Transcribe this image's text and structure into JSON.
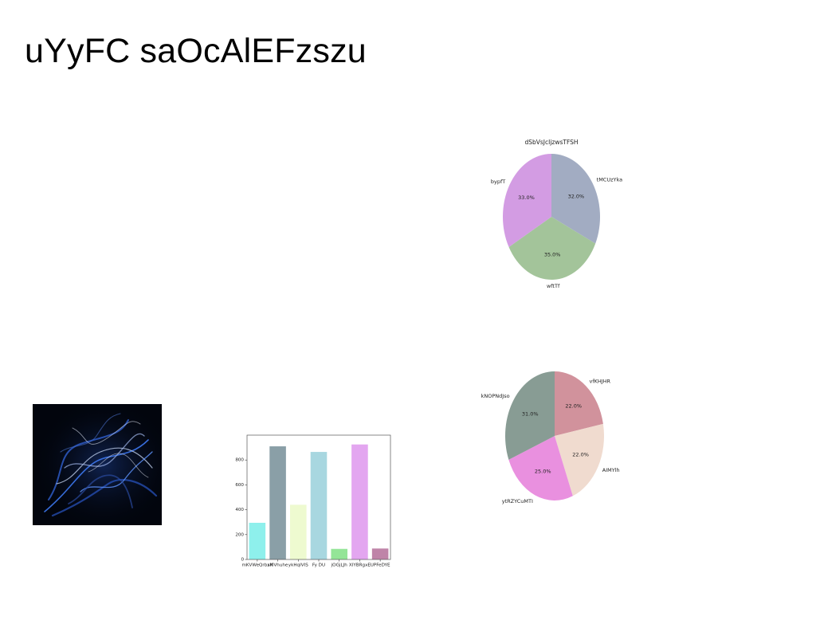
{
  "slide": {
    "title": "uYyFC saOcAlEFzszu"
  },
  "image": {
    "subject": "smoke-photo"
  },
  "chart_data": [
    {
      "type": "pie",
      "title": "dSbVsJcIjzwsTFSH",
      "labels": [
        "tMCUzYka",
        "wftTf",
        "bypfT"
      ],
      "values": [
        32.0,
        35.0,
        33.0
      ],
      "pct_labels": [
        "32.0%",
        "35.0%",
        "33.0%"
      ],
      "colors": [
        "#a2acc2",
        "#a3c49a",
        "#d39ce3"
      ],
      "start_angle_deg": 90,
      "direction": "clockwise"
    },
    {
      "type": "pie",
      "title": "",
      "labels": [
        "vfKHJHR",
        "AIMYlh",
        "ytRZYCuMTI",
        "kNOPNdJso"
      ],
      "values": [
        22.0,
        22.0,
        25.0,
        31.0
      ],
      "pct_labels": [
        "22.0%",
        "22.0%",
        "25.0%",
        "31.0%"
      ],
      "colors": [
        "#d1929c",
        "#f0dbcf",
        "#e990df",
        "#889c94"
      ],
      "start_angle_deg": 90,
      "direction": "clockwise"
    },
    {
      "type": "bar",
      "title": "",
      "xlabel": "",
      "ylabel": "",
      "categories": [
        "mKVWeQrbxK",
        "sMVhuhe",
        "ykHqIVIS",
        "Fy DU",
        "jOGjLJh",
        "XIYBRgxE",
        "UPFeDYE"
      ],
      "values": [
        295,
        910,
        440,
        865,
        85,
        925,
        88
      ],
      "colors": [
        "#8ef0ec",
        "#8a9fa7",
        "#eefad0",
        "#a8d7e0",
        "#94e597",
        "#e3a6f0",
        "#bf84a8"
      ],
      "ylim": [
        0,
        1000
      ],
      "yticks": [
        0,
        200,
        400,
        600,
        800
      ],
      "ytick_labels": [
        "0",
        "200",
        "400",
        "600",
        "800"
      ],
      "grid": false
    }
  ]
}
